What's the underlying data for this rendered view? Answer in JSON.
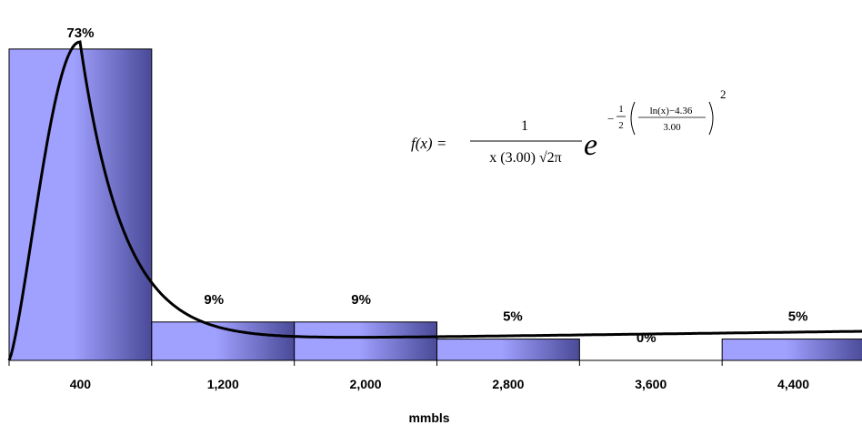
{
  "chart_data": {
    "type": "bar",
    "categories": [
      "400",
      "1,200",
      "2,000",
      "2,800",
      "3,600",
      "4,400"
    ],
    "values": [
      73,
      9,
      9,
      5,
      0,
      5
    ],
    "value_labels": [
      "73%",
      "9%",
      "9%",
      "5%",
      "0%",
      "5%"
    ],
    "xlabel": "mmbls",
    "ylabel": "",
    "ylim": [
      0,
      75
    ],
    "bin_width": 800,
    "xlim": [
      0,
      4800
    ],
    "grid": false,
    "legend": "none",
    "bar_color_light": "#a0a0ff",
    "bar_color_dark": "#4a4a98",
    "curve": {
      "type": "lognormal-pdf",
      "mu": 4.36,
      "sigma": 3.0,
      "color": "#000000"
    },
    "formula": {
      "lhs": "f(x) =",
      "numerator": "1",
      "denominator": "x (3.00) √2π",
      "base": "e",
      "exp_sign": "−",
      "exp_frac_num": "1",
      "exp_frac_den": "2",
      "inner_num": "ln(x)−4.36",
      "inner_den": "3.00",
      "power": "2"
    }
  }
}
